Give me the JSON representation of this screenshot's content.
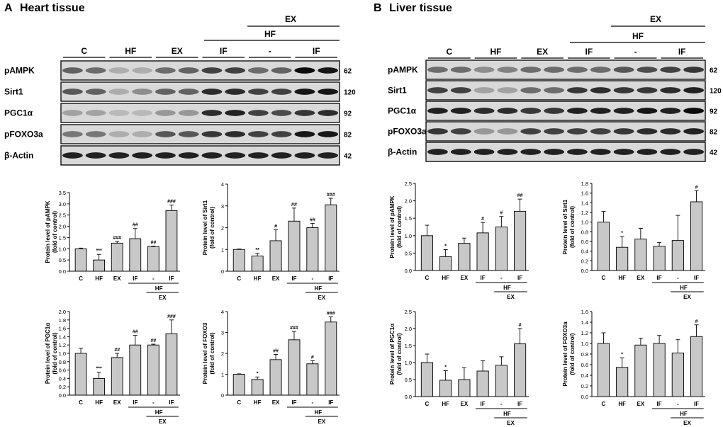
{
  "panels": [
    {
      "letter": "A",
      "title": "Heart tissue"
    },
    {
      "letter": "B",
      "title": "Liver tissue"
    }
  ],
  "blot_header": {
    "groups": [
      "C",
      "HF",
      "EX",
      "IF",
      "-",
      "IF"
    ],
    "top_label": "EX",
    "mid_label": "HF"
  },
  "blots": {
    "proteins": [
      "pAMPK",
      "Sirt1",
      "PGC1α",
      "pFOXO3a",
      "β-Actin"
    ],
    "heart_kda": [
      "62",
      "120",
      "92",
      "82",
      "42"
    ],
    "liver_kda": [
      "62",
      "120",
      "92",
      "82",
      "42"
    ]
  },
  "chart_data": [
    {
      "id": "heart-pampk",
      "type": "bar",
      "categories": [
        "C",
        "HF",
        "EX",
        "IF",
        "-",
        "IF"
      ],
      "values": [
        1.0,
        0.5,
        1.25,
        1.45,
        1.1,
        2.7
      ],
      "errors": [
        0.03,
        0.25,
        0.08,
        0.45,
        0.02,
        0.25
      ],
      "marks": [
        "",
        "***",
        "###",
        "##",
        "##",
        "###"
      ],
      "ylabel": [
        "Protein level of pAMPK",
        "(fold of control)"
      ],
      "ylim": [
        0,
        3.5
      ],
      "yticks": [
        "0.0",
        "0.5",
        "1.0",
        "1.5",
        "2.0",
        "2.5",
        "3.0",
        "3.5"
      ],
      "group_labels": {
        "mid": "HF",
        "bottom": "EX"
      }
    },
    {
      "id": "heart-sirt1",
      "type": "bar",
      "categories": [
        "C",
        "HF",
        "EX",
        "IF",
        "-",
        "IF"
      ],
      "values": [
        1.0,
        0.7,
        1.4,
        2.3,
        2.0,
        3.05
      ],
      "errors": [
        0.02,
        0.12,
        0.5,
        0.6,
        0.2,
        0.3
      ],
      "marks": [
        "",
        "**",
        "#",
        "##",
        "##",
        "###"
      ],
      "ylabel": [
        "Protein level of Sirt1",
        "(fold of control)"
      ],
      "ylim": [
        0,
        4
      ],
      "yticks": [
        "0",
        "1",
        "2",
        "3",
        "4"
      ],
      "group_labels": {
        "mid": "HF",
        "bottom": "EX"
      }
    },
    {
      "id": "heart-pgc1a",
      "type": "bar",
      "categories": [
        "C",
        "HF",
        "EX",
        "IF",
        "-",
        "IF"
      ],
      "values": [
        1.0,
        0.4,
        0.9,
        1.2,
        1.2,
        1.47
      ],
      "errors": [
        0.12,
        0.15,
        0.1,
        0.23,
        0.02,
        0.33
      ],
      "marks": [
        "",
        "***",
        "##",
        "##",
        "##",
        "###"
      ],
      "ylabel": [
        "Protein level of PGC1α",
        "(fold of control)"
      ],
      "ylim": [
        0,
        2.0
      ],
      "yticks": [
        "0.0",
        "0.2",
        "0.4",
        "0.6",
        "0.8",
        "1.0",
        "1.2",
        "1.4",
        "1.6",
        "1.8",
        "2.0"
      ],
      "group_labels": {
        "mid": "HF",
        "bottom": "EX"
      }
    },
    {
      "id": "heart-foxo3",
      "type": "bar",
      "categories": [
        "C",
        "HF",
        "EX",
        "IF",
        "-",
        "IF"
      ],
      "values": [
        1.0,
        0.75,
        1.7,
        2.65,
        1.5,
        3.5
      ],
      "errors": [
        0.02,
        0.12,
        0.25,
        0.4,
        0.15,
        0.25
      ],
      "marks": [
        "",
        "*",
        "##",
        "###",
        "#",
        "###"
      ],
      "ylabel": [
        "Protein level of FOXO3",
        "(fold of control)"
      ],
      "ylim": [
        0,
        4
      ],
      "yticks": [
        "0",
        "1",
        "2",
        "3",
        "4"
      ],
      "group_labels": {
        "mid": "HF",
        "bottom": "EX"
      }
    },
    {
      "id": "liver-pampk",
      "type": "bar",
      "categories": [
        "C",
        "HF",
        "EX",
        "IF",
        "-",
        "IF"
      ],
      "values": [
        1.0,
        0.4,
        0.78,
        1.08,
        1.25,
        1.7
      ],
      "errors": [
        0.3,
        0.2,
        0.15,
        0.3,
        0.3,
        0.35
      ],
      "marks": [
        "",
        "*",
        "",
        "#",
        "#",
        "##"
      ],
      "ylabel": [
        "Protein level of pAMPK",
        "(fold of control)"
      ],
      "ylim": [
        0,
        2.5
      ],
      "yticks": [
        "0.0",
        "0.5",
        "1.0",
        "1.5",
        "2.0",
        "2.5"
      ],
      "group_labels": {
        "mid": "HF",
        "bottom": "EX"
      }
    },
    {
      "id": "liver-sirt1",
      "type": "bar",
      "categories": [
        "C",
        "HF",
        "EX",
        "IF",
        "-",
        "IF"
      ],
      "values": [
        1.0,
        0.48,
        0.65,
        0.5,
        0.62,
        1.42
      ],
      "errors": [
        0.22,
        0.22,
        0.22,
        0.08,
        0.52,
        0.23
      ],
      "marks": [
        "",
        "*",
        "",
        "",
        "",
        "#"
      ],
      "ylabel": [
        "Protein level of Sirt1",
        "(fold of control)"
      ],
      "ylim": [
        0,
        1.8
      ],
      "yticks": [
        "0.0",
        "0.2",
        "0.4",
        "0.6",
        "0.8",
        "1.0",
        "1.2",
        "1.4",
        "1.6",
        "1.8"
      ],
      "group_labels": {
        "mid": "HF",
        "bottom": "EX"
      }
    },
    {
      "id": "liver-pgc1a",
      "type": "bar",
      "categories": [
        "C",
        "HF",
        "EX",
        "IF",
        "-",
        "IF"
      ],
      "values": [
        1.0,
        0.48,
        0.5,
        0.75,
        0.92,
        1.55
      ],
      "errors": [
        0.25,
        0.28,
        0.35,
        0.3,
        0.25,
        0.45
      ],
      "marks": [
        "",
        "*",
        "",
        "",
        "",
        "#"
      ],
      "ylabel": [
        "Protein level of PGC1α",
        "(fold of control)"
      ],
      "ylim": [
        0,
        2.5
      ],
      "yticks": [
        "0.0",
        "0.5",
        "1.0",
        "1.5",
        "2.0",
        "2.5"
      ],
      "group_labels": {
        "mid": "HF",
        "bottom": "EX"
      }
    },
    {
      "id": "liver-foxo3a",
      "type": "bar",
      "categories": [
        "C",
        "HF",
        "EX",
        "IF",
        "-",
        "IF"
      ],
      "values": [
        1.0,
        0.55,
        0.97,
        1.0,
        0.82,
        1.13
      ],
      "errors": [
        0.2,
        0.18,
        0.13,
        0.15,
        0.25,
        0.22
      ],
      "marks": [
        "",
        "*",
        "",
        "",
        "",
        "#"
      ],
      "ylabel": [
        "Protein level of FOXO3a",
        "(fold of control)"
      ],
      "ylim": [
        0,
        1.6
      ],
      "yticks": [
        "0.0",
        "0.2",
        "0.4",
        "0.6",
        "0.8",
        "1.0",
        "1.2",
        "1.4",
        "1.6"
      ],
      "group_labels": {
        "mid": "HF",
        "bottom": "EX"
      }
    }
  ]
}
